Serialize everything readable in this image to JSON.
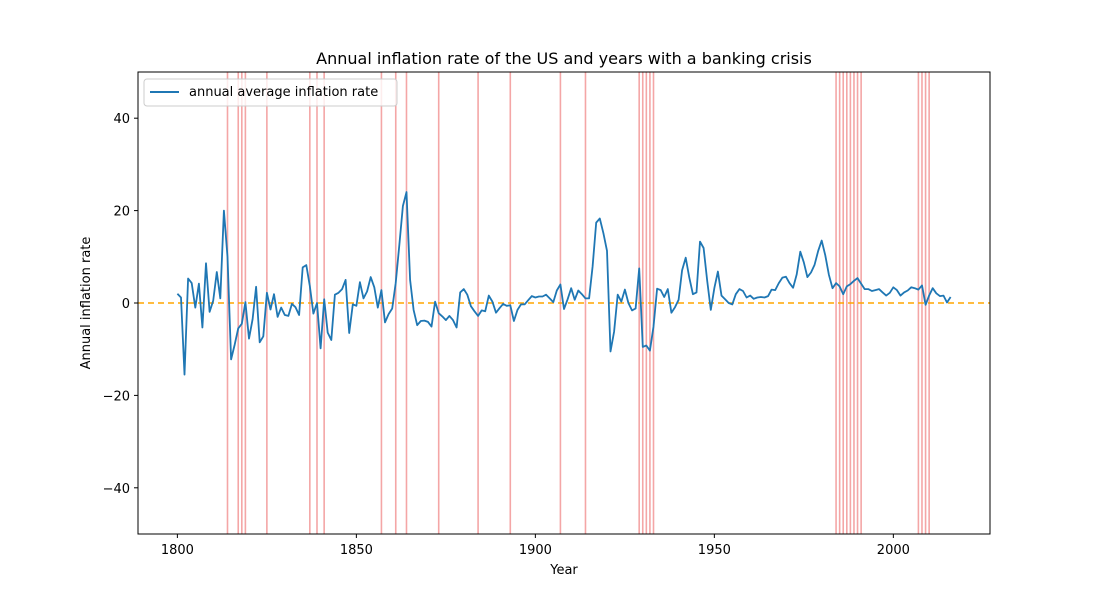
{
  "chart_data": {
    "type": "line",
    "title": "Annual inflation rate of the US and years with a banking crisis",
    "xlabel": "Year",
    "ylabel": "Annual inflation rate",
    "xlim": [
      1789,
      2027
    ],
    "ylim": [
      -50,
      50
    ],
    "x_ticks": [
      1800,
      1850,
      1900,
      1950,
      2000
    ],
    "y_ticks": [
      -40,
      -20,
      0,
      20,
      40
    ],
    "y_tick_labels": [
      "−40",
      "−20",
      "0",
      "20",
      "40"
    ],
    "grid": false,
    "legend_position": "top-left",
    "series": [
      {
        "name": "annual average inflation rate",
        "color": "#1f77b4",
        "x": [
          1800,
          1801,
          1802,
          1803,
          1804,
          1805,
          1806,
          1807,
          1808,
          1809,
          1810,
          1811,
          1812,
          1813,
          1814,
          1815,
          1816,
          1817,
          1818,
          1819,
          1820,
          1821,
          1822,
          1823,
          1824,
          1825,
          1826,
          1827,
          1828,
          1829,
          1830,
          1831,
          1832,
          1833,
          1834,
          1835,
          1836,
          1837,
          1838,
          1839,
          1840,
          1841,
          1842,
          1843,
          1844,
          1845,
          1846,
          1847,
          1848,
          1849,
          1850,
          1851,
          1852,
          1853,
          1854,
          1855,
          1856,
          1857,
          1858,
          1859,
          1860,
          1861,
          1862,
          1863,
          1864,
          1865,
          1866,
          1867,
          1868,
          1869,
          1870,
          1871,
          1872,
          1873,
          1874,
          1875,
          1876,
          1877,
          1878,
          1879,
          1880,
          1881,
          1882,
          1883,
          1884,
          1885,
          1886,
          1887,
          1888,
          1889,
          1890,
          1891,
          1892,
          1893,
          1894,
          1895,
          1896,
          1897,
          1898,
          1899,
          1900,
          1901,
          1902,
          1903,
          1904,
          1905,
          1906,
          1907,
          1908,
          1909,
          1910,
          1911,
          1912,
          1913,
          1914,
          1915,
          1916,
          1917,
          1918,
          1919,
          1920,
          1921,
          1922,
          1923,
          1924,
          1925,
          1926,
          1927,
          1928,
          1929,
          1930,
          1931,
          1932,
          1933,
          1934,
          1935,
          1936,
          1937,
          1938,
          1939,
          1940,
          1941,
          1942,
          1943,
          1944,
          1945,
          1946,
          1947,
          1948,
          1949,
          1950,
          1951,
          1952,
          1953,
          1954,
          1955,
          1956,
          1957,
          1958,
          1959,
          1960,
          1961,
          1962,
          1963,
          1964,
          1965,
          1966,
          1967,
          1968,
          1969,
          1970,
          1971,
          1972,
          1973,
          1974,
          1975,
          1976,
          1977,
          1978,
          1979,
          1980,
          1981,
          1982,
          1983,
          1984,
          1985,
          1986,
          1987,
          1988,
          1989,
          1990,
          1991,
          1992,
          1993,
          1994,
          1995,
          1996,
          1997,
          1998,
          1999,
          2000,
          2001,
          2002,
          2003,
          2004,
          2005,
          2006,
          2007,
          2008,
          2009,
          2010,
          2011,
          2012,
          2013,
          2014,
          2015,
          2016
        ],
        "y": [
          2.0,
          1.2,
          -15.5,
          5.3,
          4.3,
          -1.0,
          4.2,
          -5.3,
          8.6,
          -1.9,
          0.5,
          6.7,
          1.0,
          20.0,
          10.0,
          -12.2,
          -9.0,
          -5.5,
          -4.5,
          0.2,
          -7.7,
          -3.5,
          3.5,
          -8.5,
          -7.2,
          2.2,
          -1.4,
          1.9,
          -3.0,
          -1.0,
          -2.6,
          -2.8,
          -0.2,
          -0.9,
          -2.6,
          7.7,
          8.2,
          3.7,
          -2.3,
          0.0,
          -9.8,
          0.8,
          -6.4,
          -8.0,
          1.8,
          2.2,
          3.0,
          5.0,
          -6.5,
          -0.3,
          -0.6,
          4.5,
          1.0,
          2.5,
          5.6,
          3.4,
          -1.0,
          2.8,
          -4.2,
          -2.4,
          -1.2,
          4.3,
          12.5,
          21.0,
          24.0,
          5.0,
          -1.5,
          -4.8,
          -3.9,
          -3.8,
          -4.1,
          -5.1,
          0.3,
          -2.2,
          -2.9,
          -3.7,
          -2.8,
          -3.7,
          -5.3,
          2.3,
          3.0,
          1.8,
          -0.7,
          -1.8,
          -2.8,
          -1.6,
          -1.8,
          1.6,
          0.3,
          -2.1,
          -1.1,
          -0.2,
          -0.6,
          -0.5,
          -3.9,
          -1.5,
          -0.3,
          -0.3,
          0.6,
          1.5,
          1.2,
          1.4,
          1.4,
          1.8,
          1.0,
          0.2,
          2.7,
          4.0,
          -1.3,
          0.8,
          3.2,
          0.7,
          2.7,
          1.9,
          1.0,
          1.0,
          7.9,
          17.4,
          18.3,
          15.1,
          11.3,
          -10.5,
          -6.2,
          1.8,
          0.3,
          2.9,
          0.0,
          -1.6,
          -1.2,
          7.5,
          -9.5,
          -9.2,
          -10.3,
          -5.1,
          3.1,
          2.8,
          1.3,
          3.0,
          -2.1,
          -0.9,
          0.7,
          7.1,
          9.8,
          5.5,
          1.9,
          2.3,
          13.3,
          11.9,
          4.8,
          -1.5,
          3.3,
          6.8,
          1.6,
          0.8,
          0.0,
          -0.3,
          1.9,
          3.0,
          2.6,
          1.2,
          1.6,
          0.9,
          1.2,
          1.3,
          1.2,
          1.5,
          2.9,
          2.8,
          4.3,
          5.5,
          5.7,
          4.3,
          3.3,
          6.2,
          11.1,
          8.8,
          5.6,
          6.6,
          8.3,
          11.3,
          13.5,
          10.3,
          6.1,
          3.2,
          4.3,
          3.6,
          1.9,
          3.6,
          4.1,
          4.8,
          5.4,
          4.2,
          3.0,
          3.0,
          2.6,
          2.8,
          3.0,
          2.3,
          1.6,
          2.2,
          3.4,
          2.8,
          1.6,
          2.3,
          2.7,
          3.4,
          3.2,
          2.9,
          3.8,
          -0.4,
          1.6,
          3.2,
          2.1,
          1.5,
          1.6,
          0.1,
          1.3
        ]
      }
    ],
    "reference_lines": [
      {
        "axis": "y",
        "value": 0,
        "style": "dashed",
        "color": "#ffa500"
      }
    ],
    "crisis_years": [
      1814,
      1817,
      1818,
      1819,
      1825,
      1837,
      1839,
      1841,
      1857,
      1861,
      1864,
      1873,
      1884,
      1893,
      1907,
      1914,
      1929,
      1930,
      1931,
      1932,
      1933,
      1984,
      1985,
      1986,
      1987,
      1988,
      1989,
      1990,
      1991,
      2007,
      2008,
      2009,
      2010
    ],
    "crisis_color": "#f4a6a6"
  }
}
